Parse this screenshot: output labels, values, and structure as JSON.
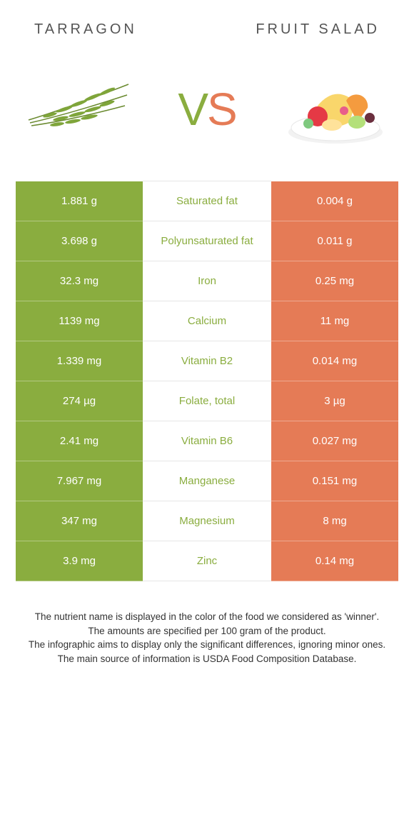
{
  "header": {
    "left": "TARRAGON",
    "right": "FRUIT SALAD"
  },
  "vs": {
    "v": "V",
    "s": "S"
  },
  "colors": {
    "left_bg": "#8aad3f",
    "right_bg": "#e57b56",
    "left_text": "#8aad3f",
    "right_text": "#e57b56"
  },
  "rows": [
    {
      "left": "1.881 g",
      "label": "Saturated fat",
      "right": "0.004 g",
      "winner": "left"
    },
    {
      "left": "3.698 g",
      "label": "Polyunsaturated fat",
      "right": "0.011 g",
      "winner": "left"
    },
    {
      "left": "32.3 mg",
      "label": "Iron",
      "right": "0.25 mg",
      "winner": "left"
    },
    {
      "left": "1139 mg",
      "label": "Calcium",
      "right": "11 mg",
      "winner": "left"
    },
    {
      "left": "1.339 mg",
      "label": "Vitamin B2",
      "right": "0.014 mg",
      "winner": "left"
    },
    {
      "left": "274 µg",
      "label": "Folate, total",
      "right": "3 µg",
      "winner": "left"
    },
    {
      "left": "2.41 mg",
      "label": "Vitamin B6",
      "right": "0.027 mg",
      "winner": "left"
    },
    {
      "left": "7.967 mg",
      "label": "Manganese",
      "right": "0.151 mg",
      "winner": "left"
    },
    {
      "left": "347 mg",
      "label": "Magnesium",
      "right": "8 mg",
      "winner": "left"
    },
    {
      "left": "3.9 mg",
      "label": "Zinc",
      "right": "0.14 mg",
      "winner": "left"
    }
  ],
  "footer": {
    "l1": "The nutrient name is displayed in the color of the food we considered as 'winner'.",
    "l2": "The amounts are specified per 100 gram of the product.",
    "l3": "The infographic aims to display only the significant differences, ignoring minor ones.",
    "l4": "The main source of information is USDA Food Composition Database."
  }
}
